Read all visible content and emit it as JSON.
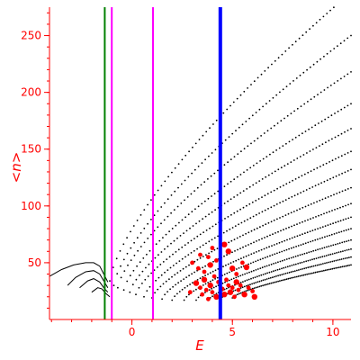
{
  "chart_data": {
    "type": "scatter",
    "xlabel": "E",
    "ylabel": "<n>",
    "xlim": [
      -4.1,
      10.9
    ],
    "ylim": [
      0,
      275
    ],
    "x_ticks": [
      0,
      5,
      10
    ],
    "y_ticks": [
      50,
      100,
      150,
      200,
      250
    ],
    "grid": false,
    "vertical_lines": [
      {
        "x": -1.35,
        "color": "#008000"
      },
      {
        "x": -1.0,
        "color": "#ff00ff"
      },
      {
        "x": 1.05,
        "color": "#ff00ff"
      },
      {
        "x": 4.4,
        "color": "#0000ff"
      }
    ],
    "level_curves": [
      {
        "x0": -1.1,
        "y0": 34,
        "x1": 10.9,
        "y1": 288
      },
      {
        "x0": -0.9,
        "y0": 30,
        "x1": 10.9,
        "y1": 250
      },
      {
        "x0": -0.7,
        "y0": 28,
        "x1": 10.9,
        "y1": 218
      },
      {
        "x0": -0.4,
        "y0": 26,
        "x1": 10.9,
        "y1": 190
      },
      {
        "x0": -0.1,
        "y0": 24,
        "x1": 10.9,
        "y1": 168
      },
      {
        "x0": 0.2,
        "y0": 22,
        "x1": 10.9,
        "y1": 148
      },
      {
        "x0": 0.6,
        "y0": 20,
        "x1": 10.9,
        "y1": 132
      },
      {
        "x0": 1.0,
        "y0": 19,
        "x1": 10.9,
        "y1": 116
      },
      {
        "x0": 1.5,
        "y0": 18,
        "x1": 10.9,
        "y1": 102
      },
      {
        "x0": 2.0,
        "y0": 17,
        "x1": 10.9,
        "y1": 90
      },
      {
        "x0": 2.6,
        "y0": 17,
        "x1": 10.9,
        "y1": 80
      },
      {
        "x0": 3.2,
        "y0": 17,
        "x1": 10.9,
        "y1": 70
      },
      {
        "x0": 3.8,
        "y0": 17,
        "x1": 10.9,
        "y1": 62
      },
      {
        "x0": 4.4,
        "y0": 18,
        "x1": 10.9,
        "y1": 55
      },
      {
        "x0": 5.0,
        "y0": 19,
        "x1": 10.9,
        "y1": 48
      }
    ],
    "low_energy_curves": [
      [
        [
          -4.1,
          38
        ],
        [
          -3.5,
          44
        ],
        [
          -2.9,
          48
        ],
        [
          -2.3,
          50
        ],
        [
          -1.9,
          50
        ],
        [
          -1.6,
          47
        ],
        [
          -1.4,
          40
        ],
        [
          -1.2,
          33
        ]
      ],
      [
        [
          -3.2,
          30
        ],
        [
          -2.8,
          37
        ],
        [
          -2.3,
          42
        ],
        [
          -1.9,
          43
        ],
        [
          -1.6,
          40
        ],
        [
          -1.4,
          34
        ],
        [
          -1.2,
          28
        ]
      ],
      [
        [
          -2.6,
          28
        ],
        [
          -2.2,
          34
        ],
        [
          -1.9,
          36
        ],
        [
          -1.6,
          33
        ],
        [
          -1.4,
          28
        ],
        [
          -1.2,
          24
        ]
      ],
      [
        [
          -2.0,
          24
        ],
        [
          -1.7,
          28
        ],
        [
          -1.5,
          27
        ],
        [
          -1.3,
          23
        ],
        [
          -1.1,
          20
        ]
      ]
    ],
    "highlighted_points": [
      {
        "x": 3.2,
        "y": 32
      },
      {
        "x": 3.4,
        "y": 28
      },
      {
        "x": 3.5,
        "y": 22
      },
      {
        "x": 3.6,
        "y": 35
      },
      {
        "x": 3.7,
        "y": 26
      },
      {
        "x": 3.8,
        "y": 18
      },
      {
        "x": 3.9,
        "y": 30
      },
      {
        "x": 4.0,
        "y": 24
      },
      {
        "x": 4.1,
        "y": 38
      },
      {
        "x": 4.2,
        "y": 20
      },
      {
        "x": 4.3,
        "y": 33
      },
      {
        "x": 4.5,
        "y": 27
      },
      {
        "x": 4.6,
        "y": 22
      },
      {
        "x": 4.7,
        "y": 35
      },
      {
        "x": 4.8,
        "y": 30
      },
      {
        "x": 4.9,
        "y": 24
      },
      {
        "x": 5.0,
        "y": 28
      },
      {
        "x": 5.1,
        "y": 20
      },
      {
        "x": 5.2,
        "y": 33
      },
      {
        "x": 5.3,
        "y": 26
      },
      {
        "x": 5.4,
        "y": 30
      },
      {
        "x": 5.6,
        "y": 22
      },
      {
        "x": 5.8,
        "y": 28
      },
      {
        "x": 6.0,
        "y": 25
      },
      {
        "x": 6.1,
        "y": 20
      },
      {
        "x": 3.3,
        "y": 45
      },
      {
        "x": 3.6,
        "y": 42
      },
      {
        "x": 3.9,
        "y": 48
      },
      {
        "x": 4.2,
        "y": 52
      },
      {
        "x": 3.8,
        "y": 55
      },
      {
        "x": 5.0,
        "y": 45
      },
      {
        "x": 5.2,
        "y": 40
      },
      {
        "x": 5.5,
        "y": 50
      },
      {
        "x": 5.7,
        "y": 46
      },
      {
        "x": 3.4,
        "y": 57
      },
      {
        "x": 4.0,
        "y": 63
      },
      {
        "x": 4.8,
        "y": 60
      },
      {
        "x": 3.0,
        "y": 50
      },
      {
        "x": 2.9,
        "y": 24
      },
      {
        "x": 4.6,
        "y": 66
      }
    ],
    "series": [
      {
        "color": "#000000"
      },
      {
        "color": "#ff0000"
      }
    ]
  }
}
